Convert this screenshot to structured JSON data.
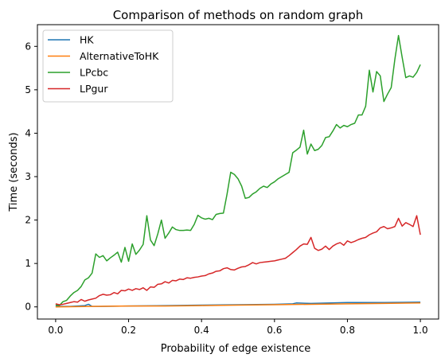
{
  "chart_data": {
    "type": "line",
    "title": "Comparison of methods on random graph",
    "xlabel": "Probability of edge existence",
    "ylabel": "Time (seconds)",
    "xlim": [
      -0.05,
      1.05
    ],
    "ylim": [
      -0.28,
      6.5
    ],
    "xticks": [
      0.0,
      0.2,
      0.4,
      0.6,
      0.8,
      1.0
    ],
    "xtick_labels": [
      "0.0",
      "0.2",
      "0.4",
      "0.6",
      "0.8",
      "1.0"
    ],
    "yticks": [
      0,
      1,
      2,
      3,
      4,
      5,
      6
    ],
    "ytick_labels": [
      "0",
      "1",
      "2",
      "3",
      "4",
      "5",
      "6"
    ],
    "grid": false,
    "legend_position": "top-left",
    "series": [
      {
        "name": "HK",
        "color": "#1f77b4",
        "x": [
          0.0,
          0.02,
          0.04,
          0.06,
          0.08,
          0.09,
          0.1,
          0.12,
          0.2,
          0.3,
          0.4,
          0.5,
          0.6,
          0.65,
          0.66,
          0.7,
          0.8,
          0.9,
          1.0
        ],
        "y": [
          0.01,
          0.01,
          0.01,
          0.02,
          0.03,
          0.06,
          0.01,
          0.01,
          0.02,
          0.03,
          0.04,
          0.05,
          0.06,
          0.07,
          0.09,
          0.08,
          0.1,
          0.1,
          0.11
        ]
      },
      {
        "name": "AlternativeToHK",
        "color": "#ff7f0e",
        "x": [
          0.0,
          0.1,
          0.2,
          0.3,
          0.4,
          0.5,
          0.6,
          0.7,
          0.8,
          0.9,
          1.0
        ],
        "y": [
          0.0,
          0.01,
          0.02,
          0.02,
          0.03,
          0.04,
          0.05,
          0.06,
          0.07,
          0.08,
          0.09
        ]
      },
      {
        "name": "LPcbc",
        "color": "#2ca02c",
        "x": [
          0.0,
          0.01,
          0.02,
          0.03,
          0.04,
          0.05,
          0.06,
          0.07,
          0.08,
          0.09,
          0.1,
          0.11,
          0.12,
          0.13,
          0.14,
          0.15,
          0.16,
          0.17,
          0.18,
          0.19,
          0.2,
          0.21,
          0.22,
          0.23,
          0.24,
          0.25,
          0.26,
          0.27,
          0.28,
          0.29,
          0.3,
          0.31,
          0.32,
          0.33,
          0.34,
          0.35,
          0.36,
          0.37,
          0.38,
          0.39,
          0.4,
          0.41,
          0.42,
          0.43,
          0.44,
          0.45,
          0.46,
          0.47,
          0.48,
          0.49,
          0.5,
          0.51,
          0.52,
          0.53,
          0.54,
          0.55,
          0.56,
          0.57,
          0.58,
          0.59,
          0.6,
          0.61,
          0.62,
          0.63,
          0.64,
          0.65,
          0.66,
          0.67,
          0.68,
          0.69,
          0.7,
          0.71,
          0.72,
          0.73,
          0.74,
          0.75,
          0.76,
          0.77,
          0.78,
          0.79,
          0.8,
          0.81,
          0.82,
          0.83,
          0.84,
          0.85,
          0.86,
          0.87,
          0.88,
          0.89,
          0.9,
          0.91,
          0.92,
          0.93,
          0.94,
          0.95,
          0.96,
          0.97,
          0.98,
          0.99,
          1.0
        ],
        "y": [
          0.04,
          0.03,
          0.12,
          0.15,
          0.25,
          0.33,
          0.38,
          0.47,
          0.62,
          0.67,
          0.78,
          1.22,
          1.14,
          1.18,
          1.06,
          1.13,
          1.19,
          1.26,
          1.03,
          1.37,
          1.05,
          1.45,
          1.21,
          1.31,
          1.44,
          2.1,
          1.54,
          1.41,
          1.68,
          2.0,
          1.58,
          1.7,
          1.84,
          1.78,
          1.76,
          1.76,
          1.77,
          1.76,
          1.9,
          2.11,
          2.05,
          2.02,
          2.04,
          2.01,
          2.13,
          2.15,
          2.16,
          2.6,
          3.1,
          3.05,
          2.95,
          2.78,
          2.5,
          2.52,
          2.6,
          2.65,
          2.73,
          2.78,
          2.75,
          2.83,
          2.88,
          2.95,
          3.0,
          3.05,
          3.1,
          3.55,
          3.61,
          3.68,
          4.07,
          3.52,
          3.75,
          3.6,
          3.63,
          3.72,
          3.9,
          3.92,
          4.05,
          4.2,
          4.12,
          4.18,
          4.15,
          4.2,
          4.23,
          4.42,
          4.42,
          4.62,
          5.45,
          4.95,
          5.42,
          5.32,
          4.73,
          4.9,
          5.05,
          5.7,
          6.25,
          5.75,
          5.28,
          5.32,
          5.29,
          5.4,
          5.58
        ]
      },
      {
        "name": "LPgur",
        "color": "#d62728",
        "x": [
          0.0,
          0.01,
          0.02,
          0.03,
          0.04,
          0.05,
          0.06,
          0.07,
          0.08,
          0.09,
          0.1,
          0.11,
          0.12,
          0.13,
          0.14,
          0.15,
          0.16,
          0.17,
          0.18,
          0.19,
          0.2,
          0.21,
          0.22,
          0.23,
          0.24,
          0.25,
          0.26,
          0.27,
          0.28,
          0.29,
          0.3,
          0.31,
          0.32,
          0.33,
          0.34,
          0.35,
          0.36,
          0.37,
          0.38,
          0.39,
          0.4,
          0.41,
          0.42,
          0.43,
          0.44,
          0.45,
          0.46,
          0.47,
          0.48,
          0.49,
          0.5,
          0.51,
          0.52,
          0.53,
          0.54,
          0.55,
          0.56,
          0.57,
          0.58,
          0.59,
          0.6,
          0.61,
          0.62,
          0.63,
          0.64,
          0.65,
          0.66,
          0.67,
          0.68,
          0.69,
          0.7,
          0.71,
          0.72,
          0.73,
          0.74,
          0.75,
          0.76,
          0.77,
          0.78,
          0.79,
          0.8,
          0.81,
          0.82,
          0.83,
          0.84,
          0.85,
          0.86,
          0.87,
          0.88,
          0.89,
          0.9,
          0.91,
          0.92,
          0.93,
          0.94,
          0.95,
          0.96,
          0.97,
          0.98,
          0.99,
          1.0
        ],
        "y": [
          0.07,
          0.05,
          0.06,
          0.08,
          0.1,
          0.12,
          0.11,
          0.17,
          0.13,
          0.16,
          0.18,
          0.2,
          0.26,
          0.29,
          0.27,
          0.28,
          0.33,
          0.3,
          0.38,
          0.37,
          0.41,
          0.38,
          0.42,
          0.4,
          0.44,
          0.38,
          0.46,
          0.45,
          0.52,
          0.53,
          0.58,
          0.55,
          0.61,
          0.6,
          0.64,
          0.63,
          0.67,
          0.66,
          0.68,
          0.69,
          0.71,
          0.72,
          0.76,
          0.78,
          0.82,
          0.83,
          0.88,
          0.9,
          0.86,
          0.85,
          0.89,
          0.92,
          0.93,
          0.97,
          1.02,
          0.99,
          1.02,
          1.03,
          1.04,
          1.05,
          1.06,
          1.08,
          1.1,
          1.12,
          1.18,
          1.25,
          1.32,
          1.4,
          1.45,
          1.44,
          1.6,
          1.35,
          1.3,
          1.33,
          1.4,
          1.32,
          1.4,
          1.45,
          1.48,
          1.42,
          1.52,
          1.48,
          1.51,
          1.55,
          1.58,
          1.6,
          1.66,
          1.7,
          1.73,
          1.82,
          1.85,
          1.8,
          1.82,
          1.85,
          2.04,
          1.86,
          1.94,
          1.9,
          1.85,
          2.1,
          1.66
        ]
      }
    ]
  }
}
